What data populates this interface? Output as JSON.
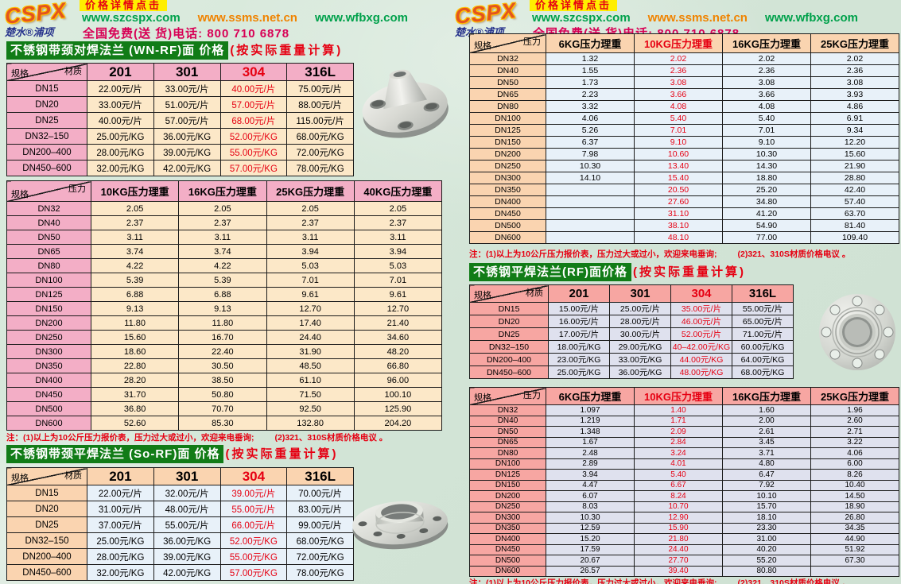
{
  "header": {
    "logo_text": "CSPX",
    "logo_sub": "楚水®浦项",
    "badge": "价格详情点击",
    "urls": [
      "www.szcspx.com",
      "www.ssms.net.cn",
      "www.wfbxg.com"
    ],
    "phone": "全国免费(送 货)电话: 800 710 6878"
  },
  "note": {
    "part1": "注：(1)以上为10公斤压力报价表，压力过大或过小，欢迎来电垂询;",
    "part2": "(2)321、310S材质价格电议 。"
  },
  "colors": {
    "banner_green": "#117c17",
    "accent_red": "#e60012",
    "url_green": "#00a14b",
    "url_orange": "#f08300",
    "phone_red": "#d80055",
    "pink_header": "#f3aec6",
    "cream_cell": "#fce8c8",
    "peach_header": "#fad4b0",
    "blue_cell": "#e8f1f9",
    "salmon_header": "#f7a6a2",
    "lavender_cell": "#dfe1ee"
  },
  "flanges": [
    "weld-neck-flange-photo",
    "slip-on-flange-photo",
    "plate-flange-photo"
  ],
  "left": {
    "banner1": {
      "title": "不锈钢带颈对焊法兰 (WN-RF)面 价格",
      "suffix": "(按实际重量计算)"
    },
    "table1": {
      "corner_top": "材质",
      "corner_bottom": "规格",
      "accent_col": 2,
      "columns": [
        "201",
        "301",
        "304",
        "316L"
      ],
      "rows": [
        [
          "DN15",
          "22.00元/片",
          "33.00元/片",
          "40.00元/片",
          "75.00元/片"
        ],
        [
          "DN20",
          "33.00元/片",
          "51.00元/片",
          "57.00元/片",
          "88.00元/片"
        ],
        [
          "DN25",
          "40.00元/片",
          "57.00元/片",
          "68.00元/片",
          "115.00元/片"
        ],
        [
          "DN32–150",
          "25.00元/KG",
          "36.00元/KG",
          "52.00元/KG",
          "68.00元/KG"
        ],
        [
          "DN200–400",
          "28.00元/KG",
          "39.00元/KG",
          "55.00元/KG",
          "72.00元/KG"
        ],
        [
          "DN450–600",
          "32.00元/KG",
          "42.00元/KG",
          "57.00元/KG",
          "78.00元/KG"
        ]
      ]
    },
    "table2": {
      "corner_top": "压力",
      "corner_bottom": "规格",
      "accent_col": -1,
      "columns": [
        "10KG压力理重",
        "16KG压力理重",
        "25KG压力理重",
        "40KG压力理重"
      ],
      "rows": [
        [
          "DN32",
          "2.05",
          "2.05",
          "2.05",
          "2.05"
        ],
        [
          "DN40",
          "2.37",
          "2.37",
          "2.37",
          "2.37"
        ],
        [
          "DN50",
          "3.11",
          "3.11",
          "3.11",
          "3.11"
        ],
        [
          "DN65",
          "3.74",
          "3.74",
          "3.94",
          "3.94"
        ],
        [
          "DN80",
          "4.22",
          "4.22",
          "5.03",
          "5.03"
        ],
        [
          "DN100",
          "5.39",
          "5.39",
          "7.01",
          "7.01"
        ],
        [
          "DN125",
          "6.88",
          "6.88",
          "9.61",
          "9.61"
        ],
        [
          "DN150",
          "9.13",
          "9.13",
          "12.70",
          "12.70"
        ],
        [
          "DN200",
          "11.80",
          "11.80",
          "17.40",
          "21.40"
        ],
        [
          "DN250",
          "15.60",
          "16.70",
          "24.40",
          "34.60"
        ],
        [
          "DN300",
          "18.60",
          "22.40",
          "31.90",
          "48.20"
        ],
        [
          "DN350",
          "22.80",
          "30.50",
          "48.50",
          "66.80"
        ],
        [
          "DN400",
          "28.20",
          "38.50",
          "61.10",
          "96.00"
        ],
        [
          "DN450",
          "31.70",
          "50.80",
          "71.50",
          "100.10"
        ],
        [
          "DN500",
          "36.80",
          "70.70",
          "92.50",
          "125.90"
        ],
        [
          "DN600",
          "52.60",
          "85.30",
          "132.80",
          "204.20"
        ]
      ]
    },
    "banner2": {
      "title": "不锈钢带颈平焊法兰 (So-RF)面 价格",
      "suffix": "(按实际重量计算)"
    },
    "table3": {
      "corner_top": "材质",
      "corner_bottom": "规格",
      "accent_col": 2,
      "columns": [
        "201",
        "301",
        "304",
        "316L"
      ],
      "rows": [
        [
          "DN15",
          "22.00元/片",
          "32.00元/片",
          "39.00元/片",
          "70.00元/片"
        ],
        [
          "DN20",
          "31.00元/片",
          "48.00元/片",
          "55.00元/片",
          "83.00元/片"
        ],
        [
          "DN25",
          "37.00元/片",
          "55.00元/片",
          "66.00元/片",
          "99.00元/片"
        ],
        [
          "DN32–150",
          "25.00元/KG",
          "36.00元/KG",
          "52.00元/KG",
          "68.00元/KG"
        ],
        [
          "DN200–400",
          "28.00元/KG",
          "39.00元/KG",
          "55.00元/KG",
          "72.00元/KG"
        ],
        [
          "DN450–600",
          "32.00元/KG",
          "42.00元/KG",
          "57.00元/KG",
          "78.00元/KG"
        ]
      ]
    }
  },
  "right": {
    "table1": {
      "corner_top": "压力",
      "corner_bottom": "规格",
      "accent_col": 1,
      "columns": [
        "6KG压力理重",
        "10KG压力理重",
        "16KG压力理重",
        "25KG压力理重"
      ],
      "rows": [
        [
          "DN32",
          "1.32",
          "2.02",
          "2.02",
          "2.02"
        ],
        [
          "DN40",
          "1.55",
          "2.36",
          "2.36",
          "2.36"
        ],
        [
          "DN50",
          "1.73",
          "3.08",
          "3.08",
          "3.08"
        ],
        [
          "DN65",
          "2.23",
          "3.66",
          "3.66",
          "3.93"
        ],
        [
          "DN80",
          "3.32",
          "4.08",
          "4.08",
          "4.86"
        ],
        [
          "DN100",
          "4.06",
          "5.40",
          "5.40",
          "6.91"
        ],
        [
          "DN125",
          "5.26",
          "7.01",
          "7.01",
          "9.34"
        ],
        [
          "DN150",
          "6.37",
          "9.10",
          "9.10",
          "12.20"
        ],
        [
          "DN200",
          "7.98",
          "10.60",
          "10.30",
          "15.60"
        ],
        [
          "DN250",
          "10.30",
          "13.40",
          "14.30",
          "21.90"
        ],
        [
          "DN300",
          "14.10",
          "15.40",
          "18.80",
          "28.80"
        ],
        [
          "DN350",
          "",
          "20.50",
          "25.20",
          "42.40"
        ],
        [
          "DN400",
          "",
          "27.60",
          "34.80",
          "57.40"
        ],
        [
          "DN450",
          "",
          "31.10",
          "41.20",
          "63.70"
        ],
        [
          "DN500",
          "",
          "38.10",
          "54.90",
          "81.40"
        ],
        [
          "DN600",
          "",
          "48.10",
          "77.00",
          "109.40"
        ]
      ]
    },
    "banner": {
      "title": "不锈钢平焊法兰(RF)面价格",
      "suffix": "(按实际重量计算)"
    },
    "table2": {
      "corner_top": "材质",
      "corner_bottom": "规格",
      "accent_col": 2,
      "columns": [
        "201",
        "301",
        "304",
        "316L"
      ],
      "rows": [
        [
          "DN15",
          "15.00元/片",
          "25.00元/片",
          "35.00元/片",
          "55.00元/片"
        ],
        [
          "DN20",
          "16.00元/片",
          "28.00元/片",
          "46.00元/片",
          "65.00元/片"
        ],
        [
          "DN25",
          "17.00元/片",
          "30.00元/片",
          "52.00元/片",
          "71.00元/片"
        ],
        [
          "DN32–150",
          "18.00元/KG",
          "29.00元/KG",
          "40–42.00元/KG",
          "60.00元/KG"
        ],
        [
          "DN200–400",
          "23.00元/KG",
          "33.00元/KG",
          "44.00元/KG",
          "64.00元/KG"
        ],
        [
          "DN450–600",
          "25.00元/KG",
          "36.00元/KG",
          "48.00元/KG",
          "68.00元/KG"
        ]
      ]
    },
    "table3": {
      "corner_top": "压力",
      "corner_bottom": "规格",
      "accent_col": 1,
      "columns": [
        "6KG压力理重",
        "10KG压力理重",
        "16KG压力理重",
        "25KG压力理重"
      ],
      "rows": [
        [
          "DN32",
          "1.097",
          "1.40",
          "1.60",
          "1.96"
        ],
        [
          "DN40",
          "1.219",
          "1.71",
          "2.00",
          "2.60"
        ],
        [
          "DN50",
          "1.348",
          "2.09",
          "2.61",
          "2.71"
        ],
        [
          "DN65",
          "1.67",
          "2.84",
          "3.45",
          "3.22"
        ],
        [
          "DN80",
          "2.48",
          "3.24",
          "3.71",
          "4.06"
        ],
        [
          "DN100",
          "2.89",
          "4.01",
          "4.80",
          "6.00"
        ],
        [
          "DN125",
          "3.94",
          "5.40",
          "6.47",
          "8.26"
        ],
        [
          "DN150",
          "4.47",
          "6.67",
          "7.92",
          "10.40"
        ],
        [
          "DN200",
          "6.07",
          "8.24",
          "10.10",
          "14.50"
        ],
        [
          "DN250",
          "8.03",
          "10.70",
          "15.70",
          "18.90"
        ],
        [
          "DN300",
          "10.30",
          "12.90",
          "18.10",
          "26.80"
        ],
        [
          "DN350",
          "12.59",
          "15.90",
          "23.30",
          "34.35"
        ],
        [
          "DN400",
          "15.20",
          "21.80",
          "31.00",
          "44.90"
        ],
        [
          "DN450",
          "17.59",
          "24.40",
          "40.20",
          "51.92"
        ],
        [
          "DN500",
          "20.67",
          "27.70",
          "55.20",
          "67.30"
        ],
        [
          "DN600",
          "26.57",
          "39.40",
          "80.80",
          ""
        ]
      ]
    }
  }
}
